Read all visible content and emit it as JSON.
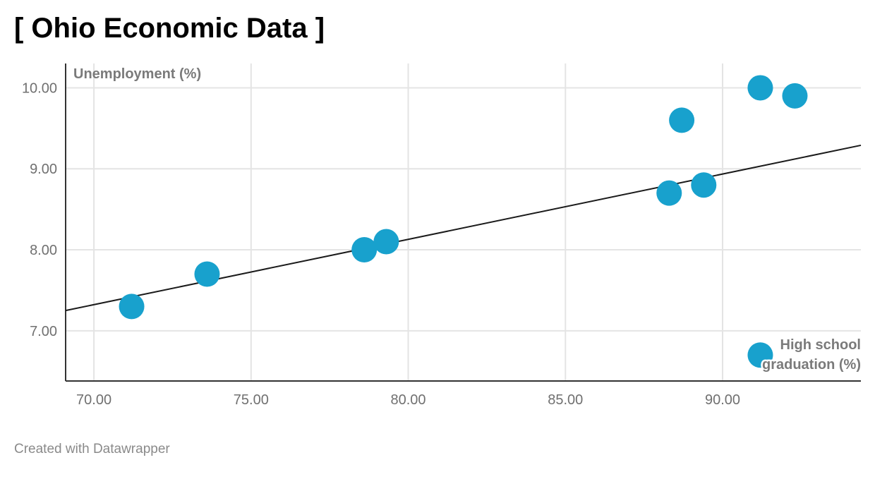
{
  "title": "[ Ohio Economic Data ]",
  "footer": "Created with Datawrapper",
  "colors": {
    "point": "#18a1cd",
    "trendline": "#1a1a1a",
    "grid": "#e4e4e4",
    "axis": "#333333"
  },
  "chart_data": {
    "type": "scatter",
    "xlabel": "High school graduation (%)",
    "xlabel_lines": [
      "High school",
      "graduation (%)"
    ],
    "ylabel": "Unemployment (%)",
    "xlim": [
      69.1,
      94.4
    ],
    "ylim": [
      6.38,
      10.3
    ],
    "x_ticks": [
      70,
      75,
      80,
      85,
      90
    ],
    "x_tick_labels": [
      "70.00",
      "75.00",
      "80.00",
      "85.00",
      "90.00"
    ],
    "y_ticks": [
      7,
      8,
      9,
      10
    ],
    "y_tick_labels": [
      "7.00",
      "8.00",
      "9.00",
      "10.00"
    ],
    "grid": true,
    "points": [
      {
        "x": 71.2,
        "y": 7.3
      },
      {
        "x": 73.6,
        "y": 7.7
      },
      {
        "x": 78.6,
        "y": 8.0
      },
      {
        "x": 79.3,
        "y": 8.1
      },
      {
        "x": 88.3,
        "y": 8.7
      },
      {
        "x": 88.7,
        "y": 9.6
      },
      {
        "x": 89.4,
        "y": 8.8
      },
      {
        "x": 91.2,
        "y": 10.0
      },
      {
        "x": 92.3,
        "y": 9.9
      },
      {
        "x": 91.2,
        "y": 6.7
      }
    ],
    "trendline": {
      "x1": 69.1,
      "y1": 7.25,
      "x2": 94.4,
      "y2": 9.29
    }
  }
}
